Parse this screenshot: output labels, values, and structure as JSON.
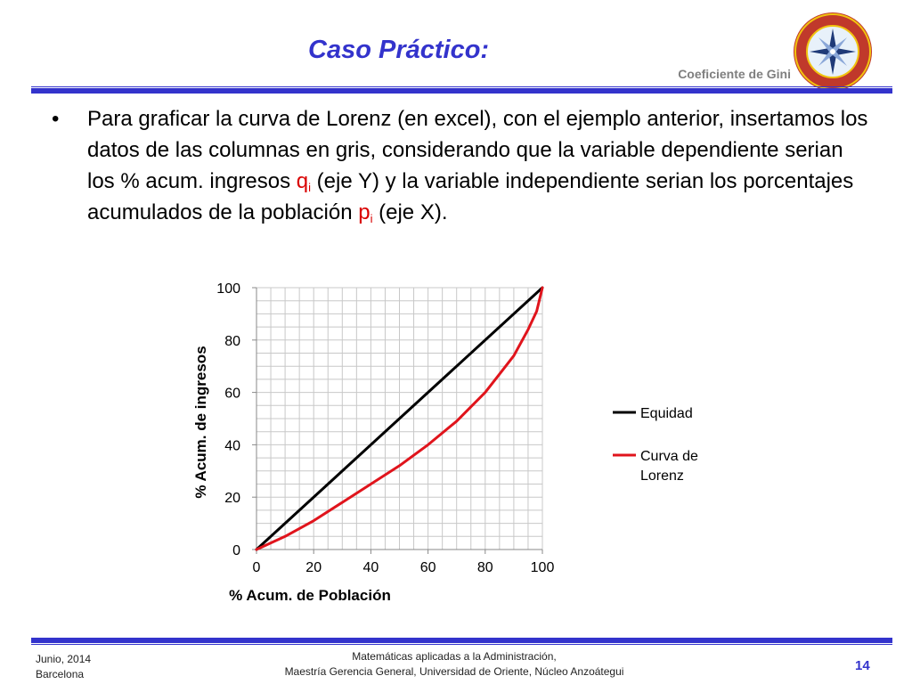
{
  "header": {
    "title": "Caso Práctico:",
    "topic": "Coeficiente de Gini",
    "logo_text_top": "UNIVERSIDAD DE ORIENTE",
    "logo_text_bottom": "VENEZUELA"
  },
  "bullet": {
    "symbol": "•",
    "part1": "Para graficar la curva de Lorenz (en excel), con el ejemplo anterior, insertamos los datos de las columnas en gris, considerando que la variable dependiente serian los % acum. ingresos  ",
    "q": "q",
    "q_sub": "i",
    "part2": " (eje Y) y la variable independiente serian los porcentajes acumulados de la población ",
    "p": "p",
    "p_sub": "i",
    "part3": " (eje X)."
  },
  "footer": {
    "date": "Junio, 2014",
    "city": "Barcelona",
    "line1": "Matemáticas aplicadas a la Administración,",
    "line2": "Maestría Gerencia General, Universidad de Oriente, Núcleo Anzoátegui",
    "page": "14"
  },
  "colors": {
    "accent": "#3333cc",
    "equity": "#000000",
    "lorenz": "#e0141c",
    "grid": "#c8c8c8"
  },
  "chart_data": {
    "type": "line",
    "xlabel": "%  Acum. de Población",
    "ylabel": "% Acum. de ingresos",
    "xlim": [
      0,
      100
    ],
    "ylim": [
      0,
      100
    ],
    "xticks": [
      0,
      20,
      40,
      60,
      80,
      100
    ],
    "yticks": [
      0,
      20,
      40,
      60,
      80,
      100
    ],
    "minor_grid_step": 5,
    "grid": true,
    "legend_position": "right",
    "series": [
      {
        "name": "Equidad",
        "color": "#000000",
        "x": [
          0,
          100
        ],
        "y": [
          0,
          100
        ]
      },
      {
        "name": "Curva de Lorenz",
        "color": "#e0141c",
        "x": [
          0,
          10,
          20,
          30,
          40,
          50,
          60,
          70,
          80,
          85,
          90,
          95,
          98,
          100
        ],
        "y": [
          0,
          5,
          11,
          18,
          25,
          32,
          40,
          49,
          60,
          67,
          74,
          84,
          91,
          100
        ]
      }
    ]
  }
}
